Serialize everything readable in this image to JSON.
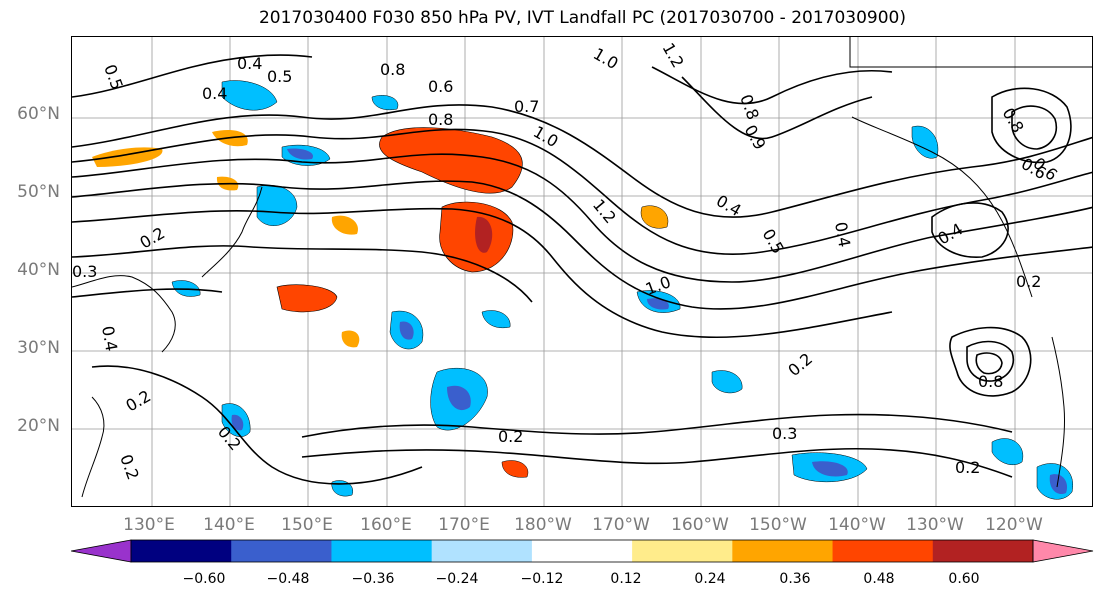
{
  "title": "2017030400 F030 850 hPa PV, IVT Landfall PC (2017030700 - 2017030900)",
  "lat_labels": [
    "60°N",
    "50°N",
    "40°N",
    "30°N",
    "20°N"
  ],
  "lon_labels": [
    "130°E",
    "140°E",
    "150°E",
    "160°E",
    "170°E",
    "180°W",
    "170°W",
    "160°W",
    "150°W",
    "140°W",
    "130°W",
    "120°W"
  ],
  "colorbar": {
    "colors": [
      "#9932cc",
      "#000080",
      "#3a5fcd",
      "#00bfff",
      "#b0e2ff",
      "#ffffff",
      "#ffec8b",
      "#ffa500",
      "#ff4500",
      "#b22222",
      "#ff88aa"
    ],
    "ticks": [
      "−0.60",
      "−0.48",
      "−0.36",
      "−0.24",
      "−0.12",
      "0.12",
      "0.24",
      "0.36",
      "0.48",
      "0.60"
    ]
  },
  "contour_labels": [
    "0.5",
    "0.4",
    "0.5",
    "0.8",
    "0.6",
    "0.8",
    "0.7",
    "1.0",
    "1.2",
    "0.4",
    "0.5",
    "0.4",
    "0.8",
    "0.6",
    "0.2",
    "0.4",
    "1.0",
    "0.2",
    "0.3",
    "0.2",
    "0.8",
    "0.2",
    "0.2",
    "0.4",
    "0.2",
    "0.2",
    "0.3",
    "0.4",
    "0.8",
    "0.6",
    "1.0",
    "0.9",
    "1.2",
    "0.2"
  ]
}
